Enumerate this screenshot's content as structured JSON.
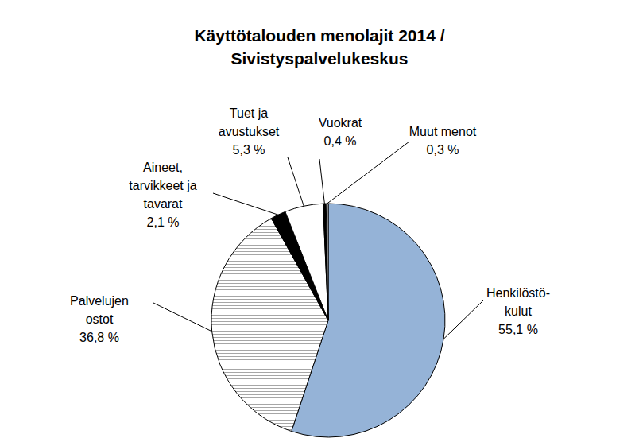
{
  "chart_data": {
    "type": "pie",
    "title": [
      "Käyttötalouden menolajit 2014 /",
      "Sivistyspalvelukeskus"
    ],
    "categories": [
      "Henkilöstö-kulut",
      "Palvelujen ostot",
      "Aineet, tarvikkeet ja tavarat",
      "Tuet ja avustukset",
      "Vuokrat",
      "Muut menot"
    ],
    "values": [
      55.1,
      36.8,
      2.1,
      5.3,
      0.4,
      0.3
    ],
    "value_labels": [
      "55,1 %",
      "36,8 %",
      "2,1 %",
      "5,3 %",
      "0,4 %",
      "0,3 %"
    ],
    "colors": [
      "#95b3d7",
      "#a6a6a6",
      "#000000",
      "#ffffff",
      "#000000",
      "#ffffff"
    ],
    "data_labels": true
  }
}
